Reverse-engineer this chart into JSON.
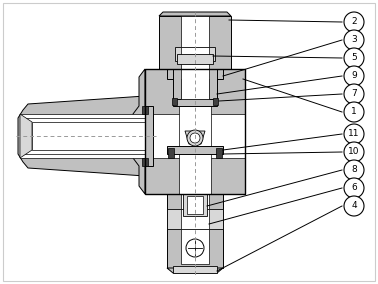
{
  "background_color": "#ffffff",
  "line_color": "#000000",
  "gray_fill": "#c0c0c0",
  "light_gray": "#d8d8d8",
  "dark_fill": "#404040",
  "white_fill": "#ffffff",
  "dashed_color": "#999999",
  "border_color": "#cccccc",
  "callout_labels": [
    2,
    3,
    5,
    9,
    7,
    1,
    11,
    10,
    8,
    6,
    4
  ]
}
